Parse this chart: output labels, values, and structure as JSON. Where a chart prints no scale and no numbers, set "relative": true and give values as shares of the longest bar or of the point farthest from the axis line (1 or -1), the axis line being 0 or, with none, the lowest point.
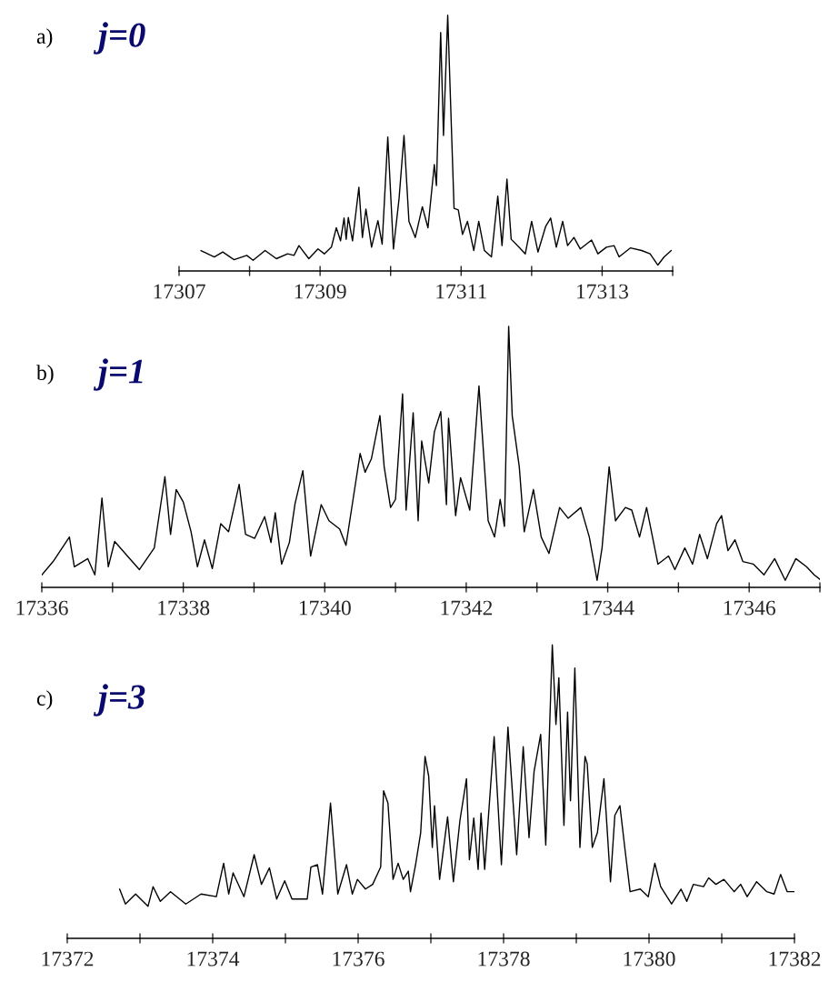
{
  "chart_data": [
    {
      "type": "line",
      "title": "a)",
      "subtitle": "j=0",
      "relative": true,
      "grid": false,
      "legend": false,
      "tick_labels": "x",
      "marker": "none",
      "line_style": "solid",
      "xlim": [
        17307,
        17314
      ],
      "xticks": [
        17307,
        {
          "value": 17308,
          "label": null
        },
        17309,
        {
          "value": 17310,
          "label": null
        },
        17311,
        {
          "value": 17312,
          "label": null
        },
        17313,
        {
          "value": 17314,
          "label": null
        }
      ],
      "series": [
        {
          "color": "#000000",
          "x": [
            17307.31,
            17307.5,
            17307.62,
            17307.78,
            17307.96,
            17308.05,
            17308.22,
            17308.38,
            17308.54,
            17308.63,
            17308.7,
            17308.84,
            17308.97,
            17309.06,
            17309.16,
            17309.23,
            17309.29,
            17309.34,
            17309.37,
            17309.4,
            17309.46,
            17309.55,
            17309.6,
            17309.65,
            17309.73,
            17309.82,
            17309.88,
            17309.96,
            17310.04,
            17310.12,
            17310.19,
            17310.26,
            17310.35,
            17310.45,
            17310.53,
            17310.62,
            17310.65,
            17310.71,
            17310.75,
            17310.81,
            17310.9,
            17310.96,
            17311.02,
            17311.09,
            17311.18,
            17311.25,
            17311.33,
            17311.43,
            17311.52,
            17311.58,
            17311.65,
            17311.71,
            17311.82,
            17311.91,
            17312.0,
            17312.09,
            17312.2,
            17312.27,
            17312.35,
            17312.44,
            17312.51,
            17312.6,
            17312.69,
            17312.85,
            17312.94,
            17313.06,
            17313.17,
            17313.24,
            17313.4,
            17313.56,
            17313.68,
            17313.79,
            17313.88,
            17313.98
          ],
          "values": [
            0.08,
            0.055,
            0.074,
            0.044,
            0.061,
            0.042,
            0.08,
            0.048,
            0.067,
            0.061,
            0.099,
            0.048,
            0.086,
            0.067,
            0.093,
            0.169,
            0.118,
            0.207,
            0.124,
            0.209,
            0.118,
            0.327,
            0.131,
            0.242,
            0.093,
            0.197,
            0.105,
            0.524,
            0.086,
            0.283,
            0.53,
            0.194,
            0.131,
            0.251,
            0.169,
            0.416,
            0.334,
            0.933,
            0.53,
            1.0,
            0.245,
            0.239,
            0.143,
            0.194,
            0.08,
            0.194,
            0.08,
            0.055,
            0.293,
            0.099,
            0.359,
            0.124,
            0.093,
            0.067,
            0.194,
            0.074,
            0.175,
            0.207,
            0.093,
            0.194,
            0.099,
            0.131,
            0.086,
            0.121,
            0.067,
            0.093,
            0.099,
            0.055,
            0.09,
            0.08,
            0.067,
            0.023,
            0.055,
            0.08
          ]
        }
      ]
    },
    {
      "type": "line",
      "title": "b)",
      "subtitle": "j=1",
      "relative": true,
      "grid": false,
      "legend": false,
      "tick_labels": "x",
      "marker": "none",
      "line_style": "solid",
      "xlim": [
        17336,
        17347
      ],
      "xticks": [
        17336,
        {
          "value": 17337,
          "label": null
        },
        17338,
        {
          "value": 17339,
          "label": null
        },
        17340,
        {
          "value": 17341,
          "label": null
        },
        17342,
        {
          "value": 17343,
          "label": null
        },
        17344,
        {
          "value": 17345,
          "label": null
        },
        17346,
        {
          "value": 17347,
          "label": null
        }
      ],
      "series": [
        {
          "color": "#000000",
          "x": [
            17336.0,
            17336.16,
            17336.39,
            17336.46,
            17336.65,
            17336.75,
            17336.85,
            17336.94,
            17337.03,
            17337.21,
            17337.38,
            17337.59,
            17337.74,
            17337.82,
            17337.9,
            17338.0,
            17338.11,
            17338.2,
            17338.3,
            17338.41,
            17338.53,
            17338.64,
            17338.79,
            17338.88,
            17339.01,
            17339.15,
            17339.24,
            17339.3,
            17339.39,
            17339.5,
            17339.58,
            17339.69,
            17339.8,
            17339.95,
            17340.06,
            17340.21,
            17340.3,
            17340.4,
            17340.5,
            17340.57,
            17340.66,
            17340.78,
            17340.84,
            17340.93,
            17341.0,
            17341.1,
            17341.15,
            17341.25,
            17341.32,
            17341.37,
            17341.47,
            17341.55,
            17341.64,
            17341.72,
            17341.75,
            17341.85,
            17341.92,
            17342.05,
            17342.18,
            17342.31,
            17342.4,
            17342.48,
            17342.54,
            17342.6,
            17342.65,
            17342.75,
            17342.82,
            17342.95,
            17343.06,
            17343.17,
            17343.32,
            17343.44,
            17343.62,
            17343.74,
            17343.85,
            17343.92,
            17344.02,
            17344.11,
            17344.25,
            17344.34,
            17344.45,
            17344.55,
            17344.71,
            17344.86,
            17344.95,
            17345.09,
            17345.2,
            17345.3,
            17345.41,
            17345.54,
            17345.61,
            17345.7,
            17345.8,
            17345.91,
            17346.06,
            17346.21,
            17346.36,
            17346.51,
            17346.66,
            17346.81,
            17346.92,
            17347.0
          ],
          "values": [
            0.048,
            0.099,
            0.193,
            0.079,
            0.11,
            0.048,
            0.342,
            0.079,
            0.176,
            0.12,
            0.068,
            0.151,
            0.424,
            0.203,
            0.375,
            0.327,
            0.213,
            0.079,
            0.182,
            0.072,
            0.244,
            0.213,
            0.395,
            0.203,
            0.188,
            0.271,
            0.172,
            0.286,
            0.089,
            0.172,
            0.321,
            0.447,
            0.12,
            0.317,
            0.255,
            0.224,
            0.161,
            0.337,
            0.513,
            0.441,
            0.493,
            0.658,
            0.462,
            0.306,
            0.337,
            0.741,
            0.296,
            0.669,
            0.255,
            0.561,
            0.4,
            0.596,
            0.673,
            0.317,
            0.648,
            0.275,
            0.42,
            0.296,
            0.772,
            0.255,
            0.193,
            0.337,
            0.234,
            1.0,
            0.658,
            0.462,
            0.213,
            0.375,
            0.193,
            0.13,
            0.306,
            0.265,
            0.306,
            0.193,
            0.027,
            0.151,
            0.462,
            0.255,
            0.306,
            0.296,
            0.193,
            0.306,
            0.089,
            0.12,
            0.068,
            0.151,
            0.089,
            0.203,
            0.11,
            0.244,
            0.275,
            0.141,
            0.182,
            0.099,
            0.089,
            0.048,
            0.11,
            0.027,
            0.11,
            0.079,
            0.048,
            0.031
          ]
        }
      ]
    },
    {
      "type": "line",
      "title": "c)",
      "subtitle": "j=3",
      "relative": true,
      "grid": false,
      "legend": false,
      "tick_labels": "x",
      "marker": "none",
      "line_style": "solid",
      "xlim": [
        17372,
        17382
      ],
      "xticks": [
        17372,
        {
          "value": 17373,
          "label": null
        },
        17374,
        {
          "value": 17375,
          "label": null
        },
        17376,
        {
          "value": 17377,
          "label": null
        },
        17378,
        {
          "value": 17379,
          "label": null
        },
        17380,
        {
          "value": 17381,
          "label": null
        },
        17382
      ],
      "series": [
        {
          "color": "#000000",
          "x": [
            17372.72,
            17372.8,
            17372.94,
            17373.11,
            17373.18,
            17373.28,
            17373.42,
            17373.63,
            17373.84,
            17374.05,
            17374.15,
            17374.22,
            17374.28,
            17374.43,
            17374.57,
            17374.67,
            17374.78,
            17374.88,
            17374.99,
            17375.09,
            17375.3,
            17375.35,
            17375.44,
            17375.51,
            17375.62,
            17375.72,
            17375.84,
            17375.92,
            17375.99,
            17376.1,
            17376.2,
            17376.31,
            17376.35,
            17376.41,
            17376.48,
            17376.55,
            17376.62,
            17376.69,
            17376.72,
            17376.79,
            17376.86,
            17376.92,
            17376.97,
            17377.02,
            17377.05,
            17377.12,
            17377.23,
            17377.31,
            17377.4,
            17377.49,
            17377.53,
            17377.59,
            17377.65,
            17377.69,
            17377.74,
            17377.87,
            17377.97,
            17378.06,
            17378.18,
            17378.27,
            17378.35,
            17378.42,
            17378.51,
            17378.58,
            17378.67,
            17378.72,
            17378.76,
            17378.83,
            17378.88,
            17378.92,
            17378.98,
            17379.05,
            17379.12,
            17379.15,
            17379.22,
            17379.29,
            17379.38,
            17379.47,
            17379.53,
            17379.6,
            17379.67,
            17379.74,
            17379.88,
            17379.99,
            17380.08,
            17380.16,
            17380.31,
            17380.44,
            17380.52,
            17380.61,
            17380.75,
            17380.82,
            17380.92,
            17381.03,
            17381.17,
            17381.26,
            17381.35,
            17381.48,
            17381.62,
            17381.72,
            17381.81,
            17381.9,
            17382.0
          ],
          "values": [
            0.168,
            0.117,
            0.151,
            0.109,
            0.176,
            0.126,
            0.159,
            0.117,
            0.151,
            0.142,
            0.256,
            0.151,
            0.223,
            0.142,
            0.285,
            0.184,
            0.24,
            0.134,
            0.196,
            0.134,
            0.134,
            0.243,
            0.251,
            0.151,
            0.461,
            0.151,
            0.251,
            0.151,
            0.201,
            0.168,
            0.184,
            0.243,
            0.503,
            0.461,
            0.201,
            0.256,
            0.201,
            0.229,
            0.159,
            0.251,
            0.36,
            0.62,
            0.553,
            0.31,
            0.452,
            0.201,
            0.414,
            0.193,
            0.402,
            0.544,
            0.268,
            0.41,
            0.235,
            0.427,
            0.235,
            0.687,
            0.251,
            0.72,
            0.285,
            0.653,
            0.343,
            0.57,
            0.695,
            0.318,
            1.0,
            0.729,
            0.888,
            0.385,
            0.771,
            0.469,
            0.921,
            0.31,
            0.62,
            0.595,
            0.31,
            0.36,
            0.544,
            0.193,
            0.419,
            0.452,
            0.302,
            0.159,
            0.168,
            0.142,
            0.256,
            0.176,
            0.117,
            0.168,
            0.126,
            0.184,
            0.176,
            0.206,
            0.184,
            0.201,
            0.159,
            0.184,
            0.142,
            0.193,
            0.159,
            0.151,
            0.218,
            0.159,
            0.159
          ]
        }
      ]
    }
  ]
}
